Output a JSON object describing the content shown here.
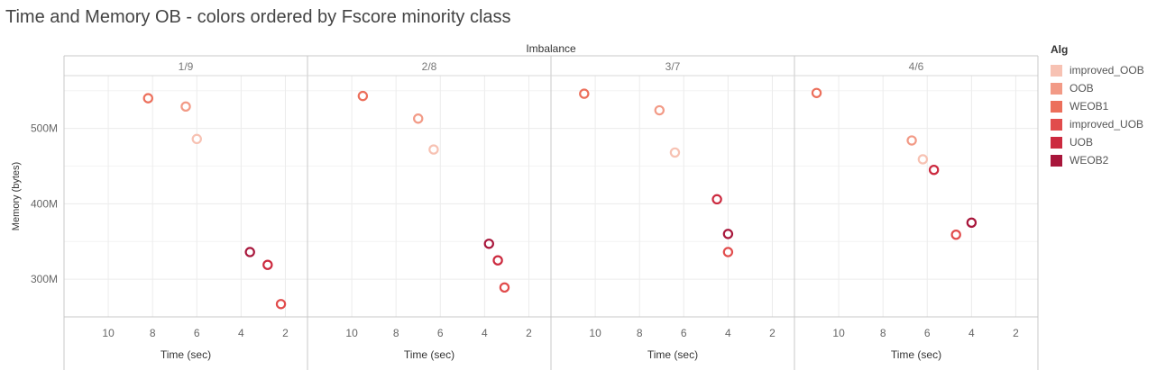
{
  "chart_data": {
    "type": "scatter",
    "title": "Time and Memory OB  - colors ordered by Fscore minority class",
    "facet_header": "Imbalance",
    "facets": [
      "1/9",
      "2/8",
      "3/7",
      "4/6"
    ],
    "xlabel": "Time (sec)",
    "ylabel": "Memory (bytes)",
    "x_reversed": true,
    "xlim": [
      12,
      1.0
    ],
    "x_ticks": [
      10,
      8,
      6,
      4,
      2
    ],
    "ylim": [
      250000000,
      570000000
    ],
    "y_ticks": [
      300000000,
      400000000,
      500000000
    ],
    "y_tick_labels": [
      "300M",
      "400M",
      "500M"
    ],
    "grid": true,
    "legend_title": "Alg",
    "legend_position": "right",
    "series": [
      {
        "name": "improved_OOB",
        "color": "#f7c2b3",
        "points": [
          {
            "facet": "1/9",
            "x": 6.0,
            "y": 486000000
          },
          {
            "facet": "2/8",
            "x": 6.3,
            "y": 472000000
          },
          {
            "facet": "3/7",
            "x": 6.4,
            "y": 468000000
          },
          {
            "facet": "4/6",
            "x": 6.2,
            "y": 459000000
          }
        ]
      },
      {
        "name": "OOB",
        "color": "#f29a86",
        "points": [
          {
            "facet": "1/9",
            "x": 6.5,
            "y": 529000000
          },
          {
            "facet": "2/8",
            "x": 7.0,
            "y": 513000000
          },
          {
            "facet": "3/7",
            "x": 7.1,
            "y": 524000000
          },
          {
            "facet": "4/6",
            "x": 6.7,
            "y": 484000000
          }
        ]
      },
      {
        "name": "WEOB1",
        "color": "#ec6f5b",
        "points": [
          {
            "facet": "1/9",
            "x": 8.2,
            "y": 540000000
          },
          {
            "facet": "2/8",
            "x": 9.5,
            "y": 543000000
          },
          {
            "facet": "3/7",
            "x": 10.5,
            "y": 546000000
          },
          {
            "facet": "4/6",
            "x": 11.0,
            "y": 547000000
          }
        ]
      },
      {
        "name": "improved_UOB",
        "color": "#e14c4c",
        "points": [
          {
            "facet": "1/9",
            "x": 2.2,
            "y": 267000000
          },
          {
            "facet": "2/8",
            "x": 3.1,
            "y": 289000000
          },
          {
            "facet": "3/7",
            "x": 4.0,
            "y": 336000000
          },
          {
            "facet": "4/6",
            "x": 4.7,
            "y": 359000000
          }
        ]
      },
      {
        "name": "UOB",
        "color": "#cc2a3f",
        "points": [
          {
            "facet": "1/9",
            "x": 2.8,
            "y": 319000000
          },
          {
            "facet": "2/8",
            "x": 3.4,
            "y": 325000000
          },
          {
            "facet": "3/7",
            "x": 4.5,
            "y": 406000000
          },
          {
            "facet": "4/6",
            "x": 5.7,
            "y": 445000000
          }
        ]
      },
      {
        "name": "WEOB2",
        "color": "#a8163b",
        "points": [
          {
            "facet": "1/9",
            "x": 3.6,
            "y": 336000000
          },
          {
            "facet": "2/8",
            "x": 3.8,
            "y": 347000000
          },
          {
            "facet": "3/7",
            "x": 4.0,
            "y": 360000000
          },
          {
            "facet": "4/6",
            "x": 4.0,
            "y": 375000000
          }
        ]
      }
    ]
  }
}
